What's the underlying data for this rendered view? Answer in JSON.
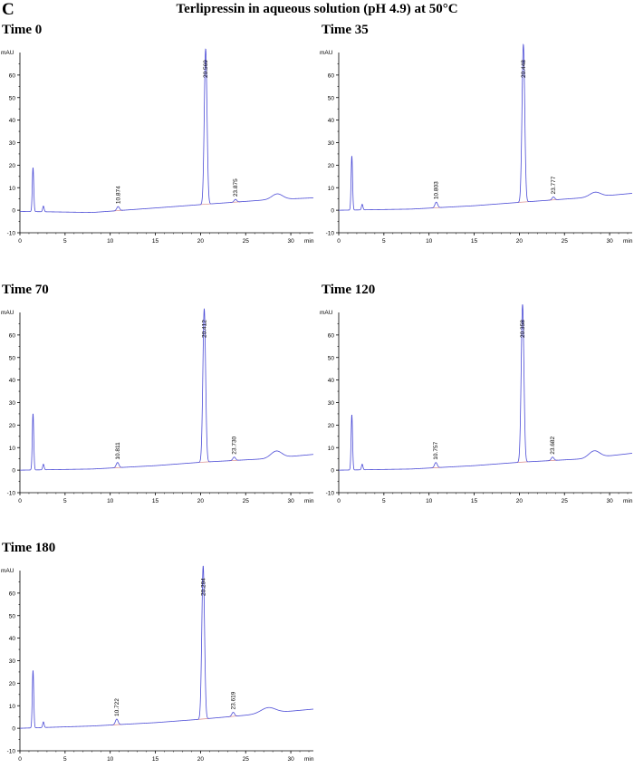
{
  "figure": {
    "panel_letter": "C",
    "title": "Terlipressin in aqueous solution (pH 4.9) at 50°C"
  },
  "colors": {
    "trace": "#4b4bd6",
    "baseline": "#d98c8c",
    "axis": "#000000"
  },
  "chart_data": [
    {
      "type": "line",
      "title": "Time 0",
      "ylabel": "mAU",
      "xlabel": "min",
      "xlim": [
        0,
        32.5
      ],
      "ylim": [
        -10,
        70
      ],
      "xticks": [
        0,
        5,
        10,
        15,
        20,
        25,
        30
      ],
      "yticks": [
        -10,
        0,
        10,
        20,
        30,
        40,
        50,
        60
      ],
      "baseline": [
        [
          0,
          -0.5
        ],
        [
          8,
          -1
        ],
        [
          15,
          1
        ],
        [
          20,
          2.5
        ],
        [
          27,
          4.5
        ],
        [
          32.5,
          5.5
        ]
      ],
      "peaks": [
        {
          "rt": 1.45,
          "height": 19.5,
          "width": 0.08
        },
        {
          "rt": 2.6,
          "height": 2.5,
          "width": 0.08
        },
        {
          "rt": 10.874,
          "height": 1.8,
          "width": 0.15,
          "label": "10.874"
        },
        {
          "rt": 20.569,
          "height": 69,
          "width": 0.15,
          "label": "20.569"
        },
        {
          "rt": 23.875,
          "height": 1.2,
          "width": 0.15,
          "label": "23.875"
        },
        {
          "rt": 28.5,
          "height": 2.5,
          "width": 0.6
        }
      ]
    },
    {
      "type": "line",
      "title": "Time 35",
      "ylabel": "mAU",
      "xlabel": "min",
      "xlim": [
        0,
        32.5
      ],
      "ylim": [
        -10,
        70
      ],
      "xticks": [
        0,
        5,
        10,
        15,
        20,
        25,
        30
      ],
      "yticks": [
        -10,
        0,
        10,
        20,
        30,
        40,
        50,
        60
      ],
      "baseline": [
        [
          0,
          0
        ],
        [
          8,
          0.5
        ],
        [
          15,
          2
        ],
        [
          20,
          3.5
        ],
        [
          27,
          5.5
        ],
        [
          32.5,
          7.5
        ]
      ],
      "peaks": [
        {
          "rt": 1.45,
          "height": 24,
          "width": 0.08
        },
        {
          "rt": 2.6,
          "height": 2.5,
          "width": 0.08
        },
        {
          "rt": 10.803,
          "height": 2.5,
          "width": 0.15,
          "label": "10.803"
        },
        {
          "rt": 20.448,
          "height": 70,
          "width": 0.15,
          "label": "20.448"
        },
        {
          "rt": 23.777,
          "height": 1.3,
          "width": 0.15,
          "label": "23.777"
        },
        {
          "rt": 28.4,
          "height": 2,
          "width": 0.6
        }
      ]
    },
    {
      "type": "line",
      "title": "Time 70",
      "ylabel": "mAU",
      "xlabel": "min",
      "xlim": [
        0,
        32.5
      ],
      "ylim": [
        -10,
        70
      ],
      "xticks": [
        0,
        5,
        10,
        15,
        20,
        25,
        30
      ],
      "yticks": [
        -10,
        0,
        10,
        20,
        30,
        40,
        50,
        60
      ],
      "baseline": [
        [
          0,
          0
        ],
        [
          8,
          0.5
        ],
        [
          15,
          2
        ],
        [
          20,
          3.5
        ],
        [
          27,
          5
        ],
        [
          32.5,
          7
        ]
      ],
      "peaks": [
        {
          "rt": 1.45,
          "height": 25,
          "width": 0.08
        },
        {
          "rt": 2.6,
          "height": 2.5,
          "width": 0.08
        },
        {
          "rt": 10.811,
          "height": 2.3,
          "width": 0.15,
          "label": "10.811"
        },
        {
          "rt": 20.412,
          "height": 68,
          "width": 0.15,
          "label": "20.412"
        },
        {
          "rt": 23.73,
          "height": 1.5,
          "width": 0.15,
          "label": "23.730"
        },
        {
          "rt": 28.4,
          "height": 3,
          "width": 0.6
        }
      ]
    },
    {
      "type": "line",
      "title": "Time 120",
      "ylabel": "mAU",
      "xlabel": "min",
      "xlim": [
        0,
        32.5
      ],
      "ylim": [
        -10,
        70
      ],
      "xticks": [
        0,
        5,
        10,
        15,
        20,
        25,
        30
      ],
      "yticks": [
        -10,
        0,
        10,
        20,
        30,
        40,
        50,
        60
      ],
      "baseline": [
        [
          0,
          0
        ],
        [
          8,
          0.5
        ],
        [
          15,
          2
        ],
        [
          20,
          3.5
        ],
        [
          27,
          5
        ],
        [
          32.5,
          7.5
        ]
      ],
      "peaks": [
        {
          "rt": 1.45,
          "height": 24.5,
          "width": 0.08
        },
        {
          "rt": 2.6,
          "height": 2.5,
          "width": 0.08
        },
        {
          "rt": 10.757,
          "height": 2.3,
          "width": 0.15,
          "label": "10.757"
        },
        {
          "rt": 20.358,
          "height": 70,
          "width": 0.15,
          "label": "20.358"
        },
        {
          "rt": 23.682,
          "height": 1.5,
          "width": 0.15,
          "label": "23.682"
        },
        {
          "rt": 28.3,
          "height": 3,
          "width": 0.6
        }
      ]
    },
    {
      "type": "line",
      "title": "Time 180",
      "ylabel": "mAU",
      "xlabel": "min",
      "xlim": [
        0,
        32.5
      ],
      "ylim": [
        -10,
        70
      ],
      "xticks": [
        0,
        5,
        10,
        15,
        20,
        25,
        30
      ],
      "yticks": [
        -10,
        0,
        10,
        20,
        30,
        40,
        50,
        60
      ],
      "baseline": [
        [
          0,
          0
        ],
        [
          8,
          1
        ],
        [
          15,
          2.5
        ],
        [
          20,
          4
        ],
        [
          27,
          6.5
        ],
        [
          32.5,
          8.5
        ]
      ],
      "peaks": [
        {
          "rt": 1.45,
          "height": 25.5,
          "width": 0.08
        },
        {
          "rt": 2.6,
          "height": 2.5,
          "width": 0.08
        },
        {
          "rt": 10.722,
          "height": 2.5,
          "width": 0.15,
          "label": "10.722"
        },
        {
          "rt": 20.294,
          "height": 68,
          "width": 0.15,
          "label": "20.294"
        },
        {
          "rt": 23.619,
          "height": 1.8,
          "width": 0.15,
          "label": "23.619"
        },
        {
          "rt": 27.5,
          "height": 2.5,
          "width": 0.8
        }
      ]
    }
  ]
}
